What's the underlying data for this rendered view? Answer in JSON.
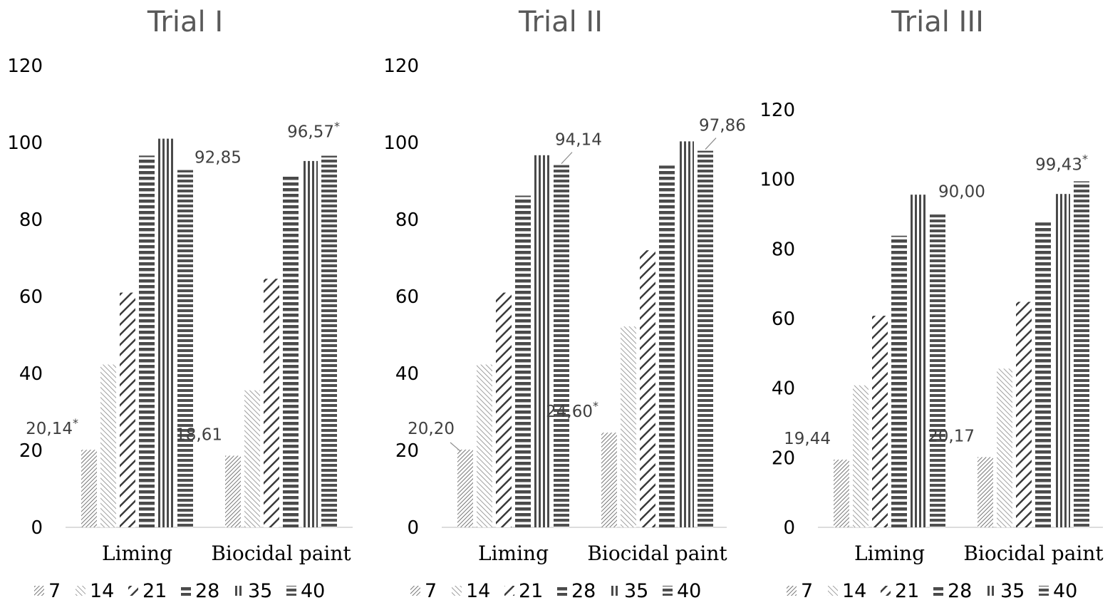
{
  "chart_data": [
    {
      "type": "bar",
      "title": "Trial I",
      "categories": [
        "Liming",
        "Biocidal paint"
      ],
      "ylim": [
        0,
        120
      ],
      "yticks": [
        0,
        20,
        40,
        60,
        80,
        100,
        120
      ],
      "legend_position": "bottom",
      "grid": false,
      "series": [
        {
          "name": "7",
          "values": [
            20.14,
            18.61
          ]
        },
        {
          "name": "14",
          "values": [
            42.3,
            35.6
          ]
        },
        {
          "name": "21",
          "values": [
            61.0,
            64.6
          ]
        },
        {
          "name": "28",
          "values": [
            96.6,
            91.2
          ]
        },
        {
          "name": "35",
          "values": [
            101.0,
            95.2
          ]
        },
        {
          "name": "40",
          "values": [
            92.85,
            96.57
          ]
        }
      ],
      "data_labels": [
        {
          "series": "7",
          "category": "Liming",
          "text": "20,14",
          "mark": "*"
        },
        {
          "series": "40",
          "category": "Liming",
          "text": "92,85",
          "mark": ""
        },
        {
          "series": "7",
          "category": "Biocidal paint",
          "text": "18,61",
          "mark": ""
        },
        {
          "series": "40",
          "category": "Biocidal paint",
          "text": "96,57",
          "mark": "*"
        }
      ]
    },
    {
      "type": "bar",
      "title": "Trial II",
      "categories": [
        "Liming",
        "Biocidal paint"
      ],
      "ylim": [
        0,
        120
      ],
      "yticks": [
        0,
        20,
        40,
        60,
        80,
        100,
        120
      ],
      "legend_position": "bottom",
      "grid": false,
      "series": [
        {
          "name": "7",
          "values": [
            20.2,
            24.6
          ]
        },
        {
          "name": "14",
          "values": [
            42.3,
            52.2
          ]
        },
        {
          "name": "21",
          "values": [
            61.0,
            72.0
          ]
        },
        {
          "name": "28",
          "values": [
            86.2,
            94.0
          ]
        },
        {
          "name": "35",
          "values": [
            96.7,
            100.3
          ]
        },
        {
          "name": "40",
          "values": [
            94.14,
            97.86
          ]
        }
      ],
      "data_labels": [
        {
          "series": "7",
          "category": "Liming",
          "text": "20,20",
          "mark": ""
        },
        {
          "series": "40",
          "category": "Liming",
          "text": "94,14",
          "mark": ""
        },
        {
          "series": "7",
          "category": "Biocidal paint",
          "text": "24,60",
          "mark": "*"
        },
        {
          "series": "40",
          "category": "Biocidal paint",
          "text": "97,86",
          "mark": ""
        }
      ]
    },
    {
      "type": "bar",
      "title": "Trial III",
      "categories": [
        "Liming",
        "Biocidal paint"
      ],
      "ylim": [
        0,
        120
      ],
      "yticks": [
        0,
        20,
        40,
        60,
        80,
        100,
        120
      ],
      "legend_position": "bottom",
      "grid": false,
      "series": [
        {
          "name": "7",
          "values": [
            19.44,
            20.17
          ]
        },
        {
          "name": "14",
          "values": [
            40.8,
            45.6
          ]
        },
        {
          "name": "21",
          "values": [
            60.8,
            64.8
          ]
        },
        {
          "name": "28",
          "values": [
            83.8,
            87.6
          ]
        },
        {
          "name": "35",
          "values": [
            95.6,
            95.8
          ]
        },
        {
          "name": "40",
          "values": [
            90.0,
            99.43
          ]
        }
      ],
      "data_labels": [
        {
          "series": "7",
          "category": "Liming",
          "text": "19,44",
          "mark": ""
        },
        {
          "series": "40",
          "category": "Liming",
          "text": "90,00",
          "mark": ""
        },
        {
          "series": "7",
          "category": "Biocidal paint",
          "text": "20,17",
          "mark": ""
        },
        {
          "series": "40",
          "category": "Biocidal paint",
          "text": "99,43",
          "mark": "*"
        }
      ]
    }
  ]
}
